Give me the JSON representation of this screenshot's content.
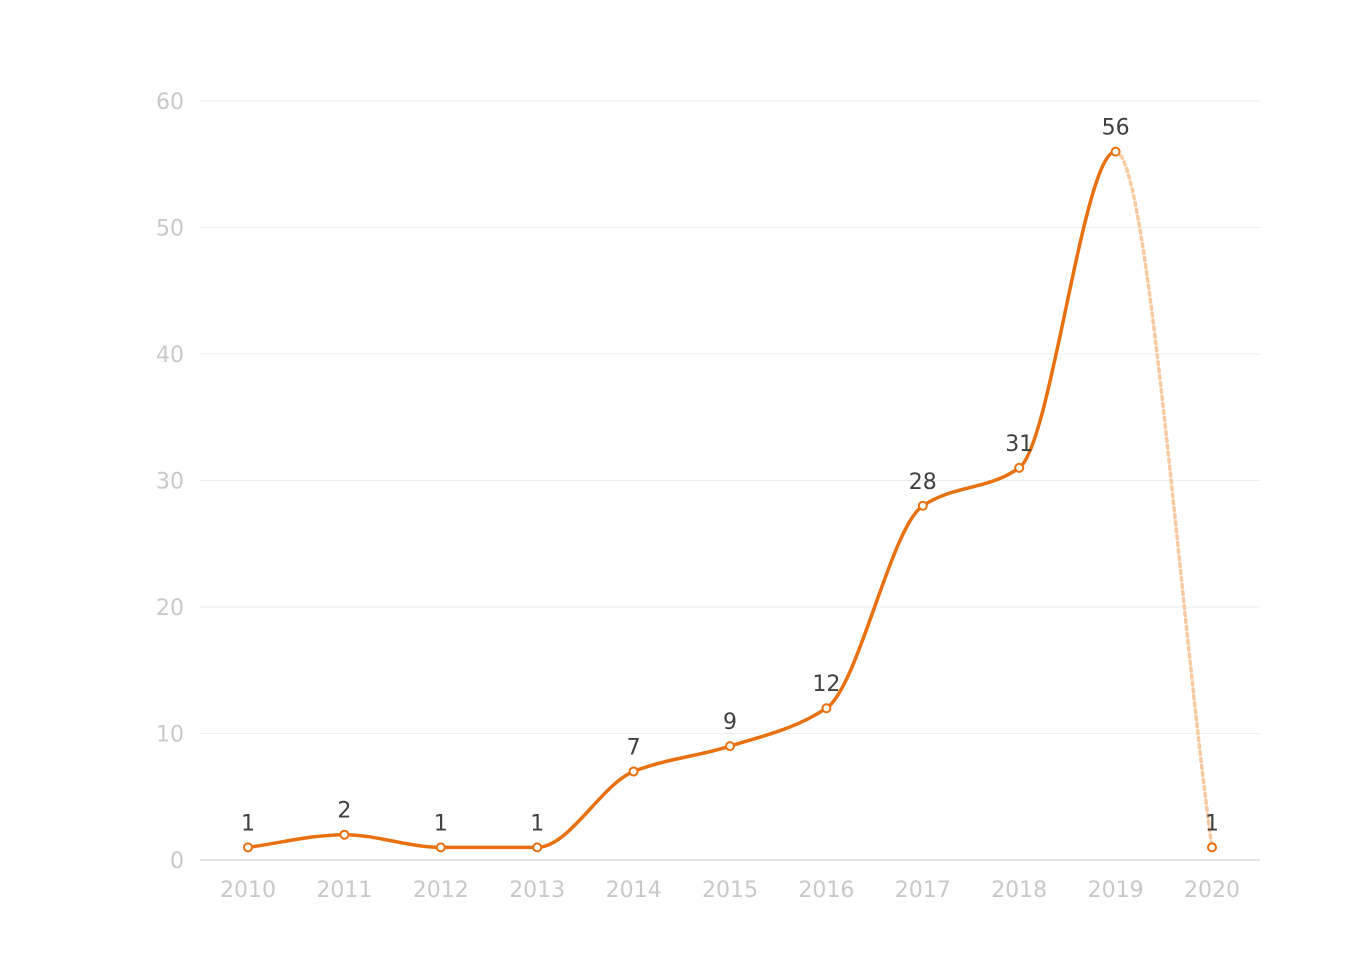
{
  "chart_data": {
    "type": "line",
    "title": "",
    "xlabel": "",
    "ylabel": "",
    "categories": [
      "2010",
      "2011",
      "2012",
      "2013",
      "2014",
      "2015",
      "2016",
      "2017",
      "2018",
      "2019",
      "2020"
    ],
    "series": [
      {
        "values": [
          1,
          2,
          1,
          1,
          7,
          9,
          12,
          28,
          31,
          56,
          1
        ]
      }
    ],
    "last_segment_style": "dotted",
    "ylim": [
      0,
      60
    ],
    "yticks": [
      0,
      10,
      20,
      30,
      40,
      50,
      60
    ],
    "grid": true,
    "legend": "none",
    "data_labels": true,
    "colors": {
      "line": "#e8700f",
      "line_projected": "#f7c9a0",
      "marker_fill": "#ffffff",
      "grid": "#eeeeee",
      "axis_text": "#c8c8c8",
      "label_text": "#404040"
    }
  }
}
